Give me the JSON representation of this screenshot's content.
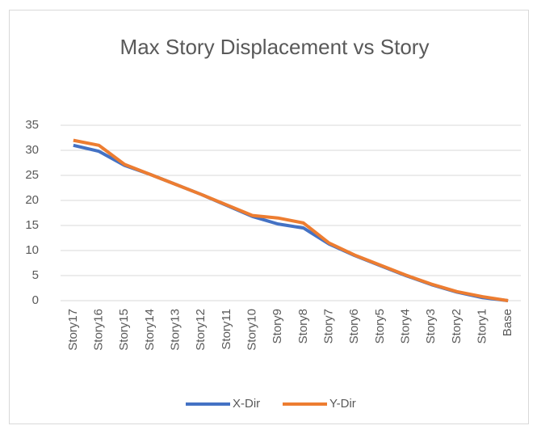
{
  "chart_data": {
    "type": "line",
    "title": "Max Story Displacement vs Story",
    "categories": [
      "Story17",
      "Story16",
      "Story15",
      "Story14",
      "Story13",
      "Story12",
      "Story11",
      "Story10",
      "Story9",
      "Story8",
      "Story7",
      "Story6",
      "Story5",
      "Story4",
      "Story3",
      "Story2",
      "Story1",
      "Base"
    ],
    "series": [
      {
        "name": "X-Dir",
        "color": "#4472c4",
        "values": [
          31,
          29.8,
          27,
          25.2,
          23.2,
          21.2,
          19,
          16.8,
          15.3,
          14.5,
          11.3,
          9,
          7,
          5,
          3.2,
          1.7,
          0.6,
          0
        ]
      },
      {
        "name": "Y-Dir",
        "color": "#ed7d31",
        "values": [
          32,
          31,
          27.2,
          25.2,
          23.2,
          21.2,
          19.1,
          17,
          16.5,
          15.5,
          11.5,
          9.1,
          7.1,
          5.1,
          3.3,
          1.8,
          0.8,
          0
        ]
      }
    ],
    "ylim": [
      0,
      35
    ],
    "yticks": [
      0,
      5,
      10,
      15,
      20,
      25,
      30,
      35
    ],
    "grid": true,
    "legend": "bottom"
  }
}
